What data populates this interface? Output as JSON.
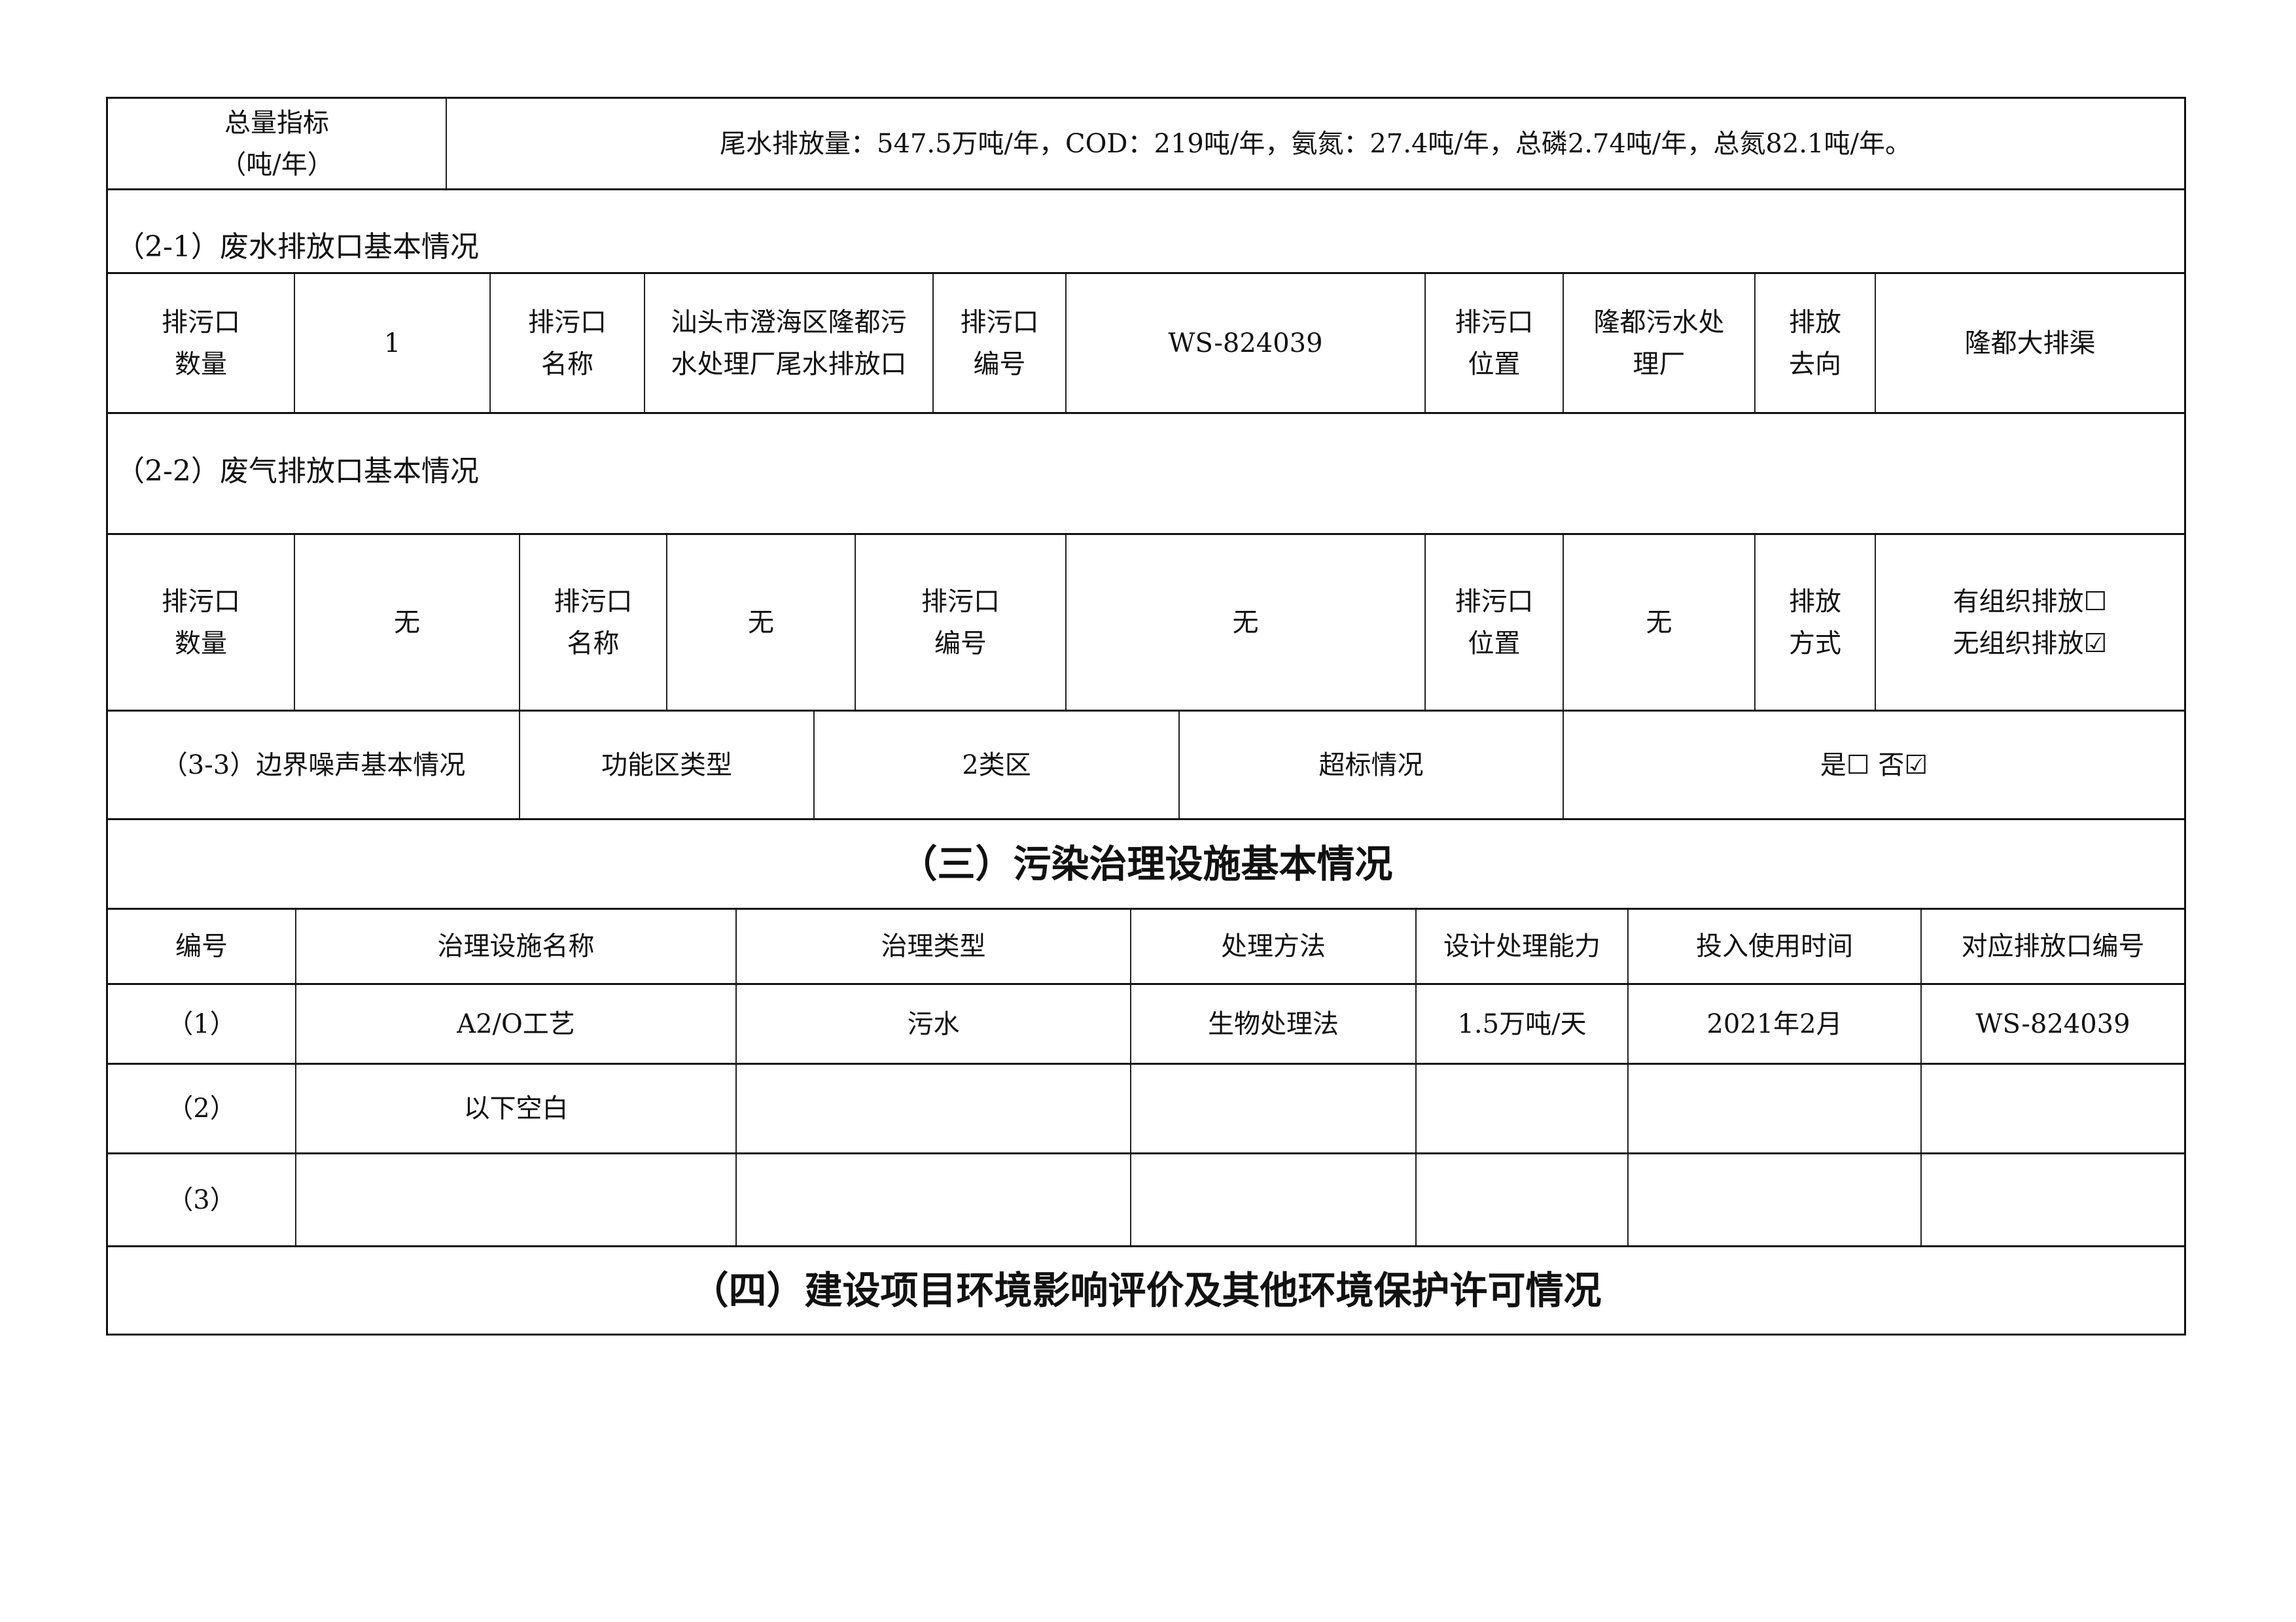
{
  "total": {
    "label": "总量指标\n（吨/年）",
    "value": "尾水排放量：547.5万吨/年，COD：219吨/年，氨氮：27.4吨/年，总磷2.74吨/年，总氮82.1吨/年。"
  },
  "wastewater": {
    "heading": "（2-1）废水排放口基本情况",
    "cells": [
      "排污口\n数量",
      "1",
      "排污口\n名称",
      "汕头市澄海区隆都污\n水处理厂尾水排放口",
      "排污口\n编号",
      "WS-824039",
      "排污口\n位置",
      "隆都污水处\n理厂",
      "排放\n去向",
      "隆都大排渠"
    ]
  },
  "gas": {
    "heading": "（2-2）废气排放口基本情况",
    "cells": [
      "排污口\n数量",
      "无",
      "排污口\n名称",
      "无",
      "排污口\n编号",
      "无",
      "排污口\n位置",
      "无",
      "排放\n方式",
      "有组织排放☐\n无组织排放☑"
    ]
  },
  "noise": {
    "cells": [
      "（3-3）边界噪声基本情况",
      "功能区类型",
      "2类区",
      "超标情况",
      "是☐  否☑"
    ]
  },
  "facilities": {
    "title": "（三）污染治理设施基本情况",
    "headers": [
      "编号",
      "治理设施名称",
      "治理类型",
      "处理方法",
      "设计处理能力",
      "投入使用时间",
      "对应排放口编号"
    ],
    "rows": [
      [
        "（1）",
        "A2/O工艺",
        "污水",
        "生物处理法",
        "1.5万吨/天",
        "2021年2月",
        "WS-824039"
      ],
      [
        "（2）",
        "以下空白",
        "",
        "",
        "",
        "",
        ""
      ],
      [
        "（3）",
        "",
        "",
        "",
        "",
        "",
        ""
      ]
    ]
  },
  "section4": {
    "title": "（四）建设项目环境影响评价及其他环境保护许可情况"
  }
}
